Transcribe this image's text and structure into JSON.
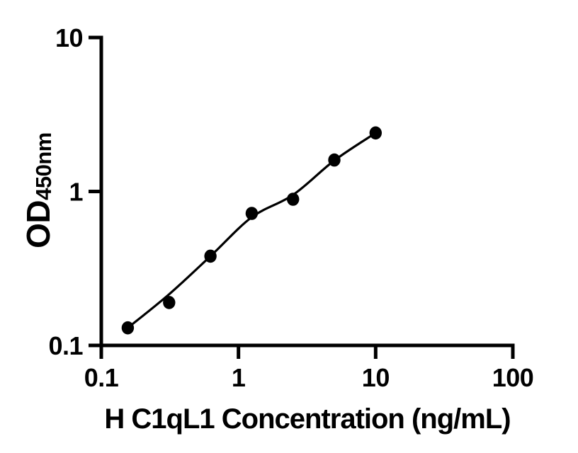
{
  "figure": {
    "background_color": "#ffffff",
    "ink_color": "#000000"
  },
  "chart_data": {
    "type": "scatter",
    "description": "ELISA standard curve, filled black circles with fitted smooth line",
    "x_scale": "log10",
    "y_scale": "log10",
    "xlabel": "H C1qL1 Concentration (ng/mL)",
    "ylabel_main": "OD",
    "ylabel_sub": "450nm",
    "xlim": [
      0.1,
      100
    ],
    "ylim": [
      0.1,
      10
    ],
    "grid": false,
    "legend": false,
    "marker": "filled-circle",
    "x_ticks": [
      {
        "value": 0.1,
        "label": "0.1"
      },
      {
        "value": 1,
        "label": "1"
      },
      {
        "value": 10,
        "label": "10"
      },
      {
        "value": 100,
        "label": "100"
      }
    ],
    "y_ticks": [
      {
        "value": 0.1,
        "label": "0.1"
      },
      {
        "value": 1,
        "label": "1"
      },
      {
        "value": 10,
        "label": "10"
      }
    ],
    "points": [
      {
        "x": 0.156,
        "y": 0.13
      },
      {
        "x": 0.3125,
        "y": 0.19
      },
      {
        "x": 0.625,
        "y": 0.38
      },
      {
        "x": 1.25,
        "y": 0.72
      },
      {
        "x": 2.5,
        "y": 0.89
      },
      {
        "x": 5,
        "y": 1.6
      },
      {
        "x": 10,
        "y": 2.4
      }
    ],
    "fit_curve": [
      {
        "x": 0.156,
        "y": 0.13
      },
      {
        "x": 0.3125,
        "y": 0.215
      },
      {
        "x": 0.625,
        "y": 0.38
      },
      {
        "x": 1.25,
        "y": 0.68
      },
      {
        "x": 2.5,
        "y": 0.95
      },
      {
        "x": 5,
        "y": 1.59
      },
      {
        "x": 10,
        "y": 2.4
      }
    ]
  }
}
